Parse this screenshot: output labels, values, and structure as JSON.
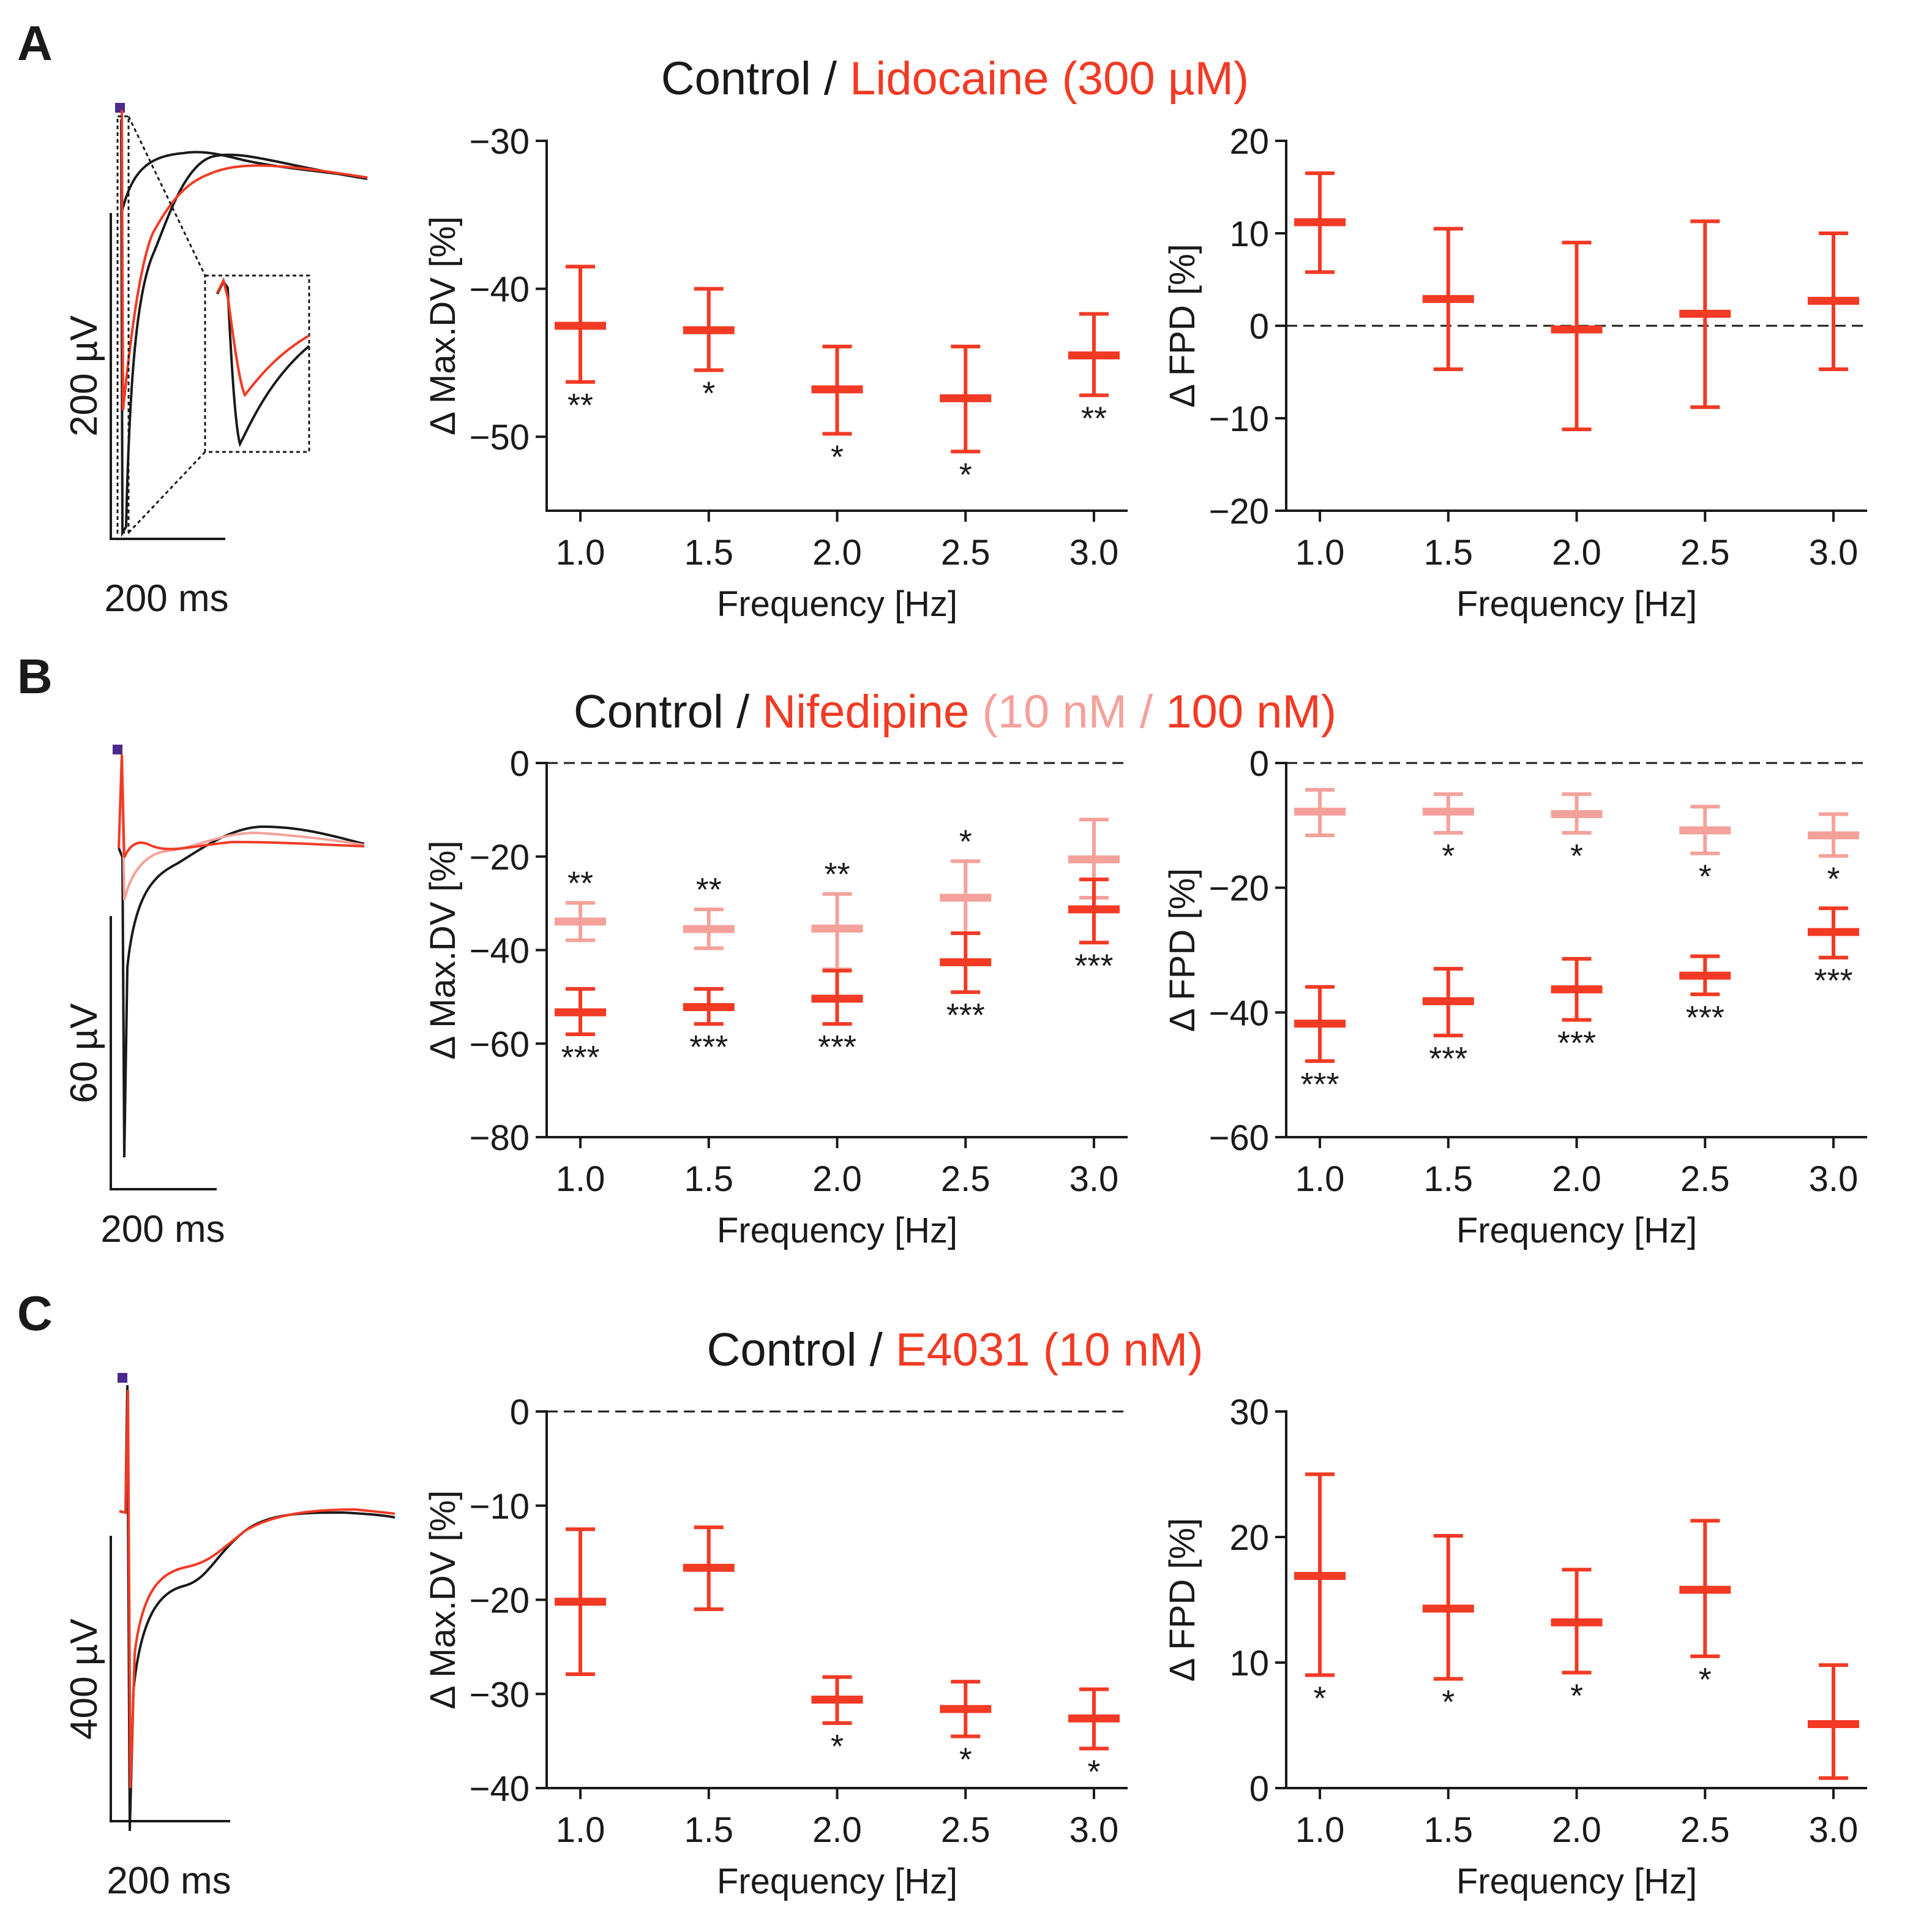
{
  "colors": {
    "control": "#1a1a1a",
    "drug": "#f23a24",
    "drug_light": "#f5a19b",
    "stim_marker": "#4b2a8c",
    "axis": "#1a1a1a",
    "dash": "#1a1a1a"
  },
  "panels": [
    {
      "letter": "A",
      "title": {
        "control": "Control",
        "sep1": " / ",
        "drug": "Lidocaine (300 µM)"
      },
      "trace": {
        "scale_y": "200 µV",
        "scale_x": "200 ms",
        "has_inset": true
      }
    },
    {
      "letter": "B",
      "title": {
        "control": "Control",
        "sep1": " / ",
        "drug": "Nifedipine",
        "paren_open": " (",
        "low_dose": "10 nM",
        "sep2": " / ",
        "high_dose": "100 nM",
        "paren_close": ")"
      },
      "trace": {
        "scale_y": "60 µV",
        "scale_x": "200 ms",
        "has_inset": false
      }
    },
    {
      "letter": "C",
      "title": {
        "control": "Control",
        "sep1": " / ",
        "drug": "E4031 (10 nM)"
      },
      "trace": {
        "scale_y": "400 µV",
        "scale_x": "200 ms",
        "has_inset": false
      }
    }
  ],
  "chart_data": [
    {
      "id": "A-maxdv",
      "panel": "A",
      "type": "errorbar",
      "xlabel": "Frequency [Hz]",
      "ylabel": "Δ Max.DV [%]",
      "categories": [
        "1.0",
        "1.5",
        "2.0",
        "2.5",
        "3.0"
      ],
      "ylim": [
        -55,
        -30
      ],
      "yticks": [
        -30,
        -40,
        -50
      ],
      "ytick_labels": [
        "−30",
        "−40",
        "−50"
      ],
      "zero_line": false,
      "series": [
        {
          "name": "Lidocaine 300 µM",
          "color": "drug",
          "values": [
            -42.5,
            -42.8,
            -46.8,
            -47.4,
            -44.5
          ],
          "lower": [
            -46.3,
            -45.5,
            -49.8,
            -51.0,
            -47.2
          ],
          "upper": [
            -38.5,
            -40.0,
            -43.9,
            -43.9,
            -41.7
          ],
          "stars": [
            "**",
            "*",
            "*",
            "*",
            "**"
          ],
          "star_pos": "below"
        }
      ]
    },
    {
      "id": "A-fpd",
      "panel": "A",
      "type": "errorbar",
      "xlabel": "Frequency [Hz]",
      "ylabel": "Δ FPD [%]",
      "categories": [
        "1.0",
        "1.5",
        "2.0",
        "2.5",
        "3.0"
      ],
      "ylim": [
        -20,
        20
      ],
      "yticks": [
        20,
        10,
        0,
        -10,
        -20
      ],
      "ytick_labels": [
        "20",
        "10",
        "0",
        "−10",
        "−20"
      ],
      "zero_line": true,
      "series": [
        {
          "name": "Lidocaine 300 µM",
          "color": "drug",
          "values": [
            11.2,
            2.9,
            -0.4,
            1.3,
            2.7
          ],
          "lower": [
            5.8,
            -4.7,
            -11.2,
            -8.8,
            -4.7
          ],
          "upper": [
            16.5,
            10.5,
            9.0,
            11.3,
            10.0
          ],
          "stars": [
            "",
            "",
            "",
            "",
            ""
          ],
          "star_pos": "below"
        }
      ]
    },
    {
      "id": "B-maxdv",
      "panel": "B",
      "type": "errorbar",
      "xlabel": "Frequency [Hz]",
      "ylabel": "Δ Max.DV [%]",
      "categories": [
        "1.0",
        "1.5",
        "2.0",
        "2.5",
        "3.0"
      ],
      "ylim": [
        -80,
        0
      ],
      "yticks": [
        0,
        -20,
        -40,
        -60,
        -80
      ],
      "ytick_labels": [
        "0",
        "−20",
        "−40",
        "−60",
        "−80"
      ],
      "zero_line": true,
      "series": [
        {
          "name": "Nifedipine 10 nM",
          "color": "drug_light",
          "values": [
            -33.9,
            -35.5,
            -35.4,
            -28.8,
            -20.6
          ],
          "lower": [
            -37.9,
            -39.6,
            -44.1,
            -36.4,
            -28.8
          ],
          "upper": [
            -29.9,
            -31.3,
            -28.0,
            -21.0,
            -12.1
          ],
          "stars": [
            "**",
            "**",
            "**",
            "*",
            ""
          ],
          "star_pos": "above"
        },
        {
          "name": "Nifedipine 100 nM",
          "color": "drug",
          "values": [
            -53.3,
            -52.2,
            -50.4,
            -42.6,
            -31.3
          ],
          "lower": [
            -58.0,
            -55.8,
            -55.8,
            -49.0,
            -38.4
          ],
          "upper": [
            -48.3,
            -48.3,
            -44.4,
            -36.4,
            -24.9
          ],
          "stars": [
            "***",
            "***",
            "***",
            "***",
            "***"
          ],
          "star_pos": "below"
        }
      ]
    },
    {
      "id": "B-fpd",
      "panel": "B",
      "type": "errorbar",
      "xlabel": "Frequency [Hz]",
      "ylabel": "Δ FPD [%]",
      "categories": [
        "1.0",
        "1.5",
        "2.0",
        "2.5",
        "3.0"
      ],
      "ylim": [
        -60,
        0
      ],
      "yticks": [
        0,
        -20,
        -40,
        -60
      ],
      "ytick_labels": [
        "0",
        "−20",
        "−40",
        "−60"
      ],
      "zero_line": true,
      "series": [
        {
          "name": "Nifedipine 10 nM",
          "color": "drug_light",
          "values": [
            -7.8,
            -7.8,
            -8.2,
            -10.8,
            -11.6
          ],
          "lower": [
            -11.6,
            -11.2,
            -11.2,
            -14.5,
            -14.9
          ],
          "upper": [
            -4.3,
            -5.0,
            -5.0,
            -7.0,
            -8.2
          ],
          "stars": [
            "",
            "*",
            "*",
            "*",
            "*"
          ],
          "star_pos": "below"
        },
        {
          "name": "Nifedipine 100 nM",
          "color": "drug",
          "values": [
            -41.8,
            -38.2,
            -36.3,
            -34.1,
            -27.1
          ],
          "lower": [
            -47.8,
            -43.7,
            -41.2,
            -37.1,
            -31.2
          ],
          "upper": [
            -35.9,
            -33.0,
            -31.4,
            -31.0,
            -23.3
          ],
          "stars": [
            "***",
            "***",
            "***",
            "***",
            "***"
          ],
          "star_pos": "below"
        }
      ]
    },
    {
      "id": "C-maxdv",
      "panel": "C",
      "type": "errorbar",
      "xlabel": "Frequency [Hz]",
      "ylabel": "Δ Max.DV [%]",
      "categories": [
        "1.0",
        "1.5",
        "2.0",
        "2.5",
        "3.0"
      ],
      "ylim": [
        -40,
        0
      ],
      "yticks": [
        0,
        -10,
        -20,
        -30,
        -40
      ],
      "ytick_labels": [
        "0",
        "−10",
        "−20",
        "−30",
        "−40"
      ],
      "zero_line": true,
      "series": [
        {
          "name": "E4031 10 nM",
          "color": "drug",
          "values": [
            -20.2,
            -16.6,
            -30.6,
            -31.6,
            -32.6
          ],
          "lower": [
            -27.9,
            -21.0,
            -33.1,
            -34.5,
            -35.8
          ],
          "upper": [
            -12.5,
            -12.3,
            -28.2,
            -28.7,
            -29.5
          ],
          "stars": [
            "",
            "",
            "*",
            "*",
            "*"
          ],
          "star_pos": "below"
        }
      ]
    },
    {
      "id": "C-fpd",
      "panel": "C",
      "type": "errorbar",
      "xlabel": "Frequency [Hz]",
      "ylabel": "Δ FPD [%]",
      "categories": [
        "1.0",
        "1.5",
        "2.0",
        "2.5",
        "3.0"
      ],
      "ylim": [
        0,
        30
      ],
      "yticks": [
        30,
        20,
        10,
        0
      ],
      "ytick_labels": [
        "30",
        "20",
        "10",
        "0"
      ],
      "zero_line": false,
      "series": [
        {
          "name": "E4031 10 nM",
          "color": "drug",
          "values": [
            16.9,
            14.3,
            13.2,
            15.8,
            5.1
          ],
          "lower": [
            9.0,
            8.7,
            9.2,
            10.5,
            0.8
          ],
          "upper": [
            25.0,
            20.1,
            17.4,
            21.3,
            9.8
          ],
          "stars": [
            "*",
            "*",
            "*",
            "*",
            ""
          ],
          "star_pos": "below"
        }
      ]
    }
  ]
}
